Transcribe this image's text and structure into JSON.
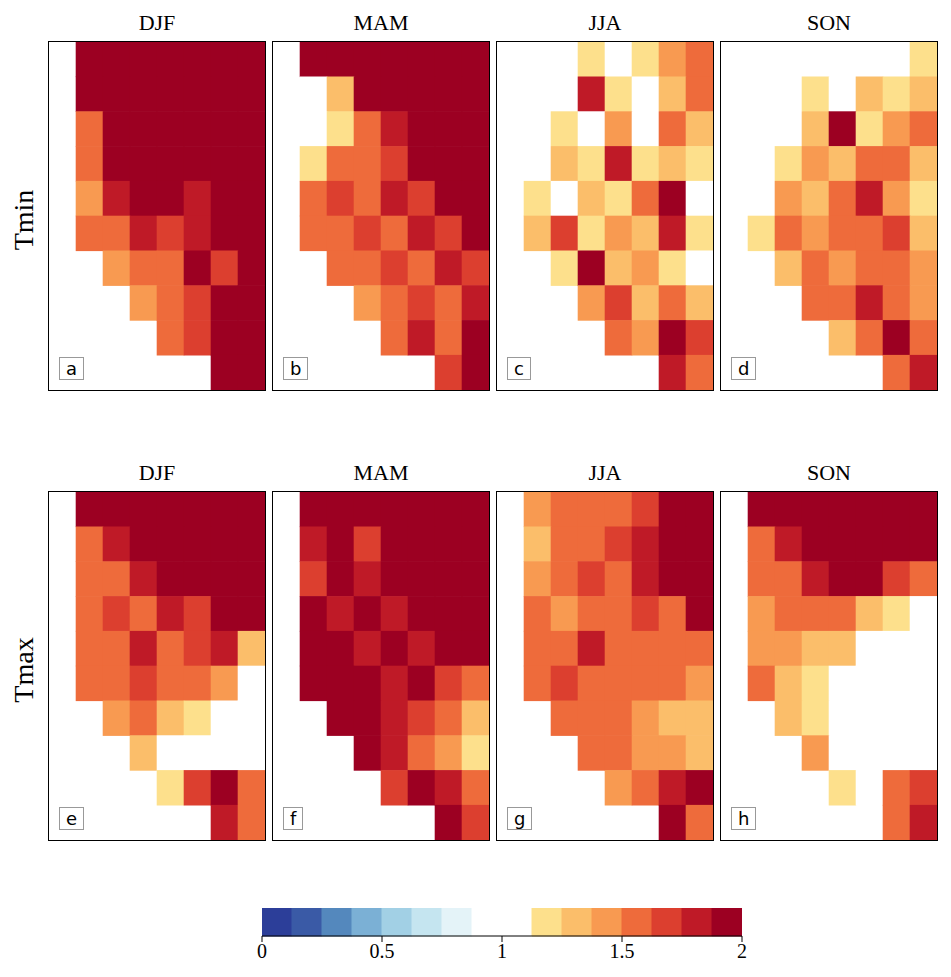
{
  "chart_data": {
    "type": "heatmap",
    "row_labels": [
      "Tmin",
      "Tmax"
    ],
    "tick_labels": false,
    "panels": [
      {
        "title": "DJF",
        "letter": "a",
        "cells": [
          [
            null,
            2,
            2,
            2,
            2,
            2,
            2,
            2
          ],
          [
            null,
            1.9,
            2,
            2,
            2,
            2,
            2,
            2
          ],
          [
            null,
            1.6,
            2,
            2,
            2,
            2,
            2,
            2
          ],
          [
            null,
            1.5,
            1.9,
            2,
            2,
            2,
            2,
            2
          ],
          [
            null,
            1.4,
            1.8,
            1.9,
            2,
            1.8,
            2,
            2
          ],
          [
            null,
            1.5,
            1.6,
            1.8,
            1.7,
            1.8,
            1.9,
            2
          ],
          [
            null,
            null,
            1.4,
            1.6,
            1.5,
            1.9,
            1.7,
            2
          ],
          [
            null,
            null,
            null,
            1.4,
            1.6,
            1.7,
            1.9,
            2
          ],
          [
            null,
            null,
            null,
            null,
            1.5,
            1.7,
            2,
            2
          ],
          [
            null,
            null,
            null,
            null,
            null,
            null,
            2,
            2
          ]
        ]
      },
      {
        "title": "MAM",
        "letter": "b",
        "cells": [
          [
            null,
            1.9,
            2,
            2,
            2,
            2,
            2,
            2
          ],
          [
            null,
            1.0,
            1.3,
            1.9,
            2,
            2,
            2,
            2
          ],
          [
            null,
            1.0,
            1.2,
            1.5,
            1.8,
            2,
            2,
            2
          ],
          [
            null,
            1.2,
            1.5,
            1.6,
            1.7,
            1.9,
            2,
            2
          ],
          [
            null,
            1.5,
            1.7,
            1.6,
            1.8,
            1.7,
            1.9,
            2
          ],
          [
            null,
            1.6,
            1.5,
            1.7,
            1.6,
            1.8,
            1.7,
            1.9
          ],
          [
            null,
            null,
            1.6,
            1.5,
            1.7,
            1.6,
            1.8,
            1.7
          ],
          [
            null,
            null,
            null,
            1.4,
            1.6,
            1.7,
            1.5,
            1.8
          ],
          [
            null,
            null,
            null,
            null,
            1.5,
            1.8,
            1.6,
            1.9
          ],
          [
            null,
            null,
            null,
            null,
            null,
            null,
            1.7,
            1.9
          ]
        ]
      },
      {
        "title": "JJA",
        "letter": "c",
        "cells": [
          [
            null,
            1.0,
            1.1,
            1.2,
            1.1,
            1.2,
            1.4,
            1.6
          ],
          [
            null,
            1.0,
            1.1,
            1.8,
            1.2,
            1.0,
            1.3,
            1.5
          ],
          [
            null,
            1.0,
            1.2,
            1.1,
            1.4,
            1.1,
            1.6,
            1.3
          ],
          [
            null,
            1.1,
            1.3,
            1.2,
            1.8,
            1.2,
            1.3,
            1.2
          ],
          [
            null,
            1.2,
            1.1,
            1.3,
            1.2,
            1.5,
            1.9,
            1.1
          ],
          [
            null,
            1.3,
            1.7,
            1.2,
            1.4,
            1.3,
            1.8,
            1.2
          ],
          [
            null,
            null,
            1.2,
            1.9,
            1.3,
            1.4,
            1.2,
            1.0
          ],
          [
            null,
            null,
            null,
            1.4,
            1.7,
            1.3,
            1.5,
            1.3
          ],
          [
            null,
            null,
            null,
            null,
            1.6,
            1.4,
            1.9,
            1.7
          ],
          [
            null,
            null,
            null,
            null,
            null,
            null,
            1.8,
            1.5
          ]
        ]
      },
      {
        "title": "SON",
        "letter": "d",
        "cells": [
          [
            null,
            0.9,
            1.0,
            1.0,
            1.1,
            1.0,
            1.1,
            1.2
          ],
          [
            null,
            0.9,
            1.0,
            1.2,
            1.1,
            1.3,
            1.2,
            1.3
          ],
          [
            null,
            1.0,
            1.1,
            1.3,
            1.9,
            1.2,
            1.4,
            1.5
          ],
          [
            null,
            1.0,
            1.2,
            1.4,
            1.3,
            1.5,
            1.6,
            1.3
          ],
          [
            null,
            1.1,
            1.4,
            1.3,
            1.5,
            1.8,
            1.4,
            1.2
          ],
          [
            null,
            1.2,
            1.6,
            1.4,
            1.6,
            1.5,
            1.7,
            1.3
          ],
          [
            null,
            null,
            1.3,
            1.5,
            1.4,
            1.6,
            1.5,
            1.4
          ],
          [
            null,
            null,
            null,
            1.5,
            1.6,
            1.8,
            1.5,
            1.4
          ],
          [
            null,
            null,
            null,
            null,
            1.3,
            1.5,
            1.9,
            1.6
          ],
          [
            null,
            null,
            null,
            null,
            null,
            null,
            1.5,
            1.8
          ]
        ]
      },
      {
        "title": "DJF",
        "letter": "e",
        "cells": [
          [
            null,
            2,
            2,
            2,
            2,
            2,
            2,
            2
          ],
          [
            null,
            1.6,
            1.8,
            1.9,
            2,
            2,
            2,
            2
          ],
          [
            null,
            1.5,
            1.6,
            1.8,
            1.9,
            2,
            2,
            2
          ],
          [
            null,
            1.6,
            1.7,
            1.6,
            1.8,
            1.7,
            2,
            1.9
          ],
          [
            null,
            1.5,
            1.6,
            1.8,
            1.6,
            1.7,
            1.8,
            1.3
          ],
          [
            null,
            1.5,
            1.6,
            1.7,
            1.5,
            1.6,
            1.4,
            1.1
          ],
          [
            null,
            null,
            1.4,
            1.5,
            1.3,
            1.2,
            1.0,
            1.0
          ],
          [
            null,
            null,
            null,
            1.3,
            1.1,
            1.0,
            0.95,
            1.0
          ],
          [
            null,
            null,
            null,
            null,
            1.2,
            1.7,
            1.9,
            1.6
          ],
          [
            null,
            null,
            null,
            null,
            null,
            null,
            1.8,
            1.5
          ]
        ]
      },
      {
        "title": "MAM",
        "letter": "f",
        "cells": [
          [
            null,
            2,
            2,
            2,
            2,
            2,
            2,
            2
          ],
          [
            null,
            1.8,
            1.9,
            1.7,
            2,
            2,
            2,
            2
          ],
          [
            null,
            1.7,
            1.9,
            1.8,
            1.9,
            2,
            2,
            2
          ],
          [
            null,
            1.9,
            1.8,
            1.9,
            1.8,
            2,
            2,
            2
          ],
          [
            null,
            2,
            1.9,
            1.8,
            1.9,
            1.8,
            2,
            1.9
          ],
          [
            null,
            2,
            1.9,
            2,
            1.8,
            1.9,
            1.7,
            1.5
          ],
          [
            null,
            null,
            2,
            1.9,
            1.8,
            1.7,
            1.5,
            1.3
          ],
          [
            null,
            null,
            null,
            1.9,
            1.8,
            1.6,
            1.4,
            1.2
          ],
          [
            null,
            null,
            null,
            null,
            1.7,
            1.9,
            1.8,
            1.6
          ],
          [
            null,
            null,
            null,
            null,
            null,
            null,
            1.9,
            1.7
          ]
        ]
      },
      {
        "title": "JJA",
        "letter": "g",
        "cells": [
          [
            null,
            1.4,
            1.5,
            1.5,
            1.6,
            1.7,
            1.9,
            2
          ],
          [
            null,
            1.3,
            1.5,
            1.6,
            1.7,
            1.8,
            2,
            2
          ],
          [
            null,
            1.4,
            1.5,
            1.7,
            1.6,
            1.8,
            1.9,
            2
          ],
          [
            null,
            1.5,
            1.4,
            1.6,
            1.5,
            1.7,
            1.6,
            1.9
          ],
          [
            null,
            1.6,
            1.5,
            1.8,
            1.6,
            1.5,
            1.6,
            1.5
          ],
          [
            null,
            1.5,
            1.7,
            1.6,
            1.5,
            1.6,
            1.5,
            1.4
          ],
          [
            null,
            null,
            1.6,
            1.5,
            1.6,
            1.4,
            1.3,
            1.3
          ],
          [
            null,
            null,
            null,
            1.6,
            1.5,
            1.4,
            1.4,
            1.3
          ],
          [
            null,
            null,
            null,
            null,
            1.4,
            1.5,
            1.8,
            1.9
          ],
          [
            null,
            null,
            null,
            null,
            null,
            null,
            1.9,
            1.6
          ]
        ]
      },
      {
        "title": "SON",
        "letter": "h",
        "cells": [
          [
            null,
            1.9,
            2,
            2,
            2,
            2,
            2,
            2
          ],
          [
            null,
            1.6,
            1.8,
            2,
            2,
            2,
            2,
            2
          ],
          [
            null,
            1.5,
            1.6,
            1.8,
            1.9,
            1.9,
            1.7,
            1.6
          ],
          [
            null,
            1.4,
            1.5,
            1.6,
            1.5,
            1.3,
            1.2,
            1.1
          ],
          [
            null,
            1.4,
            1.4,
            1.3,
            1.3,
            1.1,
            1.0,
            1.0
          ],
          [
            null,
            1.5,
            1.3,
            1.2,
            1.1,
            1.0,
            1.0,
            1.1
          ],
          [
            null,
            null,
            1.3,
            1.2,
            1.1,
            1.0,
            1.0,
            1.0
          ],
          [
            null,
            null,
            null,
            1.4,
            1.1,
            1.0,
            1.0,
            1.0
          ],
          [
            null,
            null,
            null,
            null,
            1.2,
            1.1,
            1.5,
            1.7
          ],
          [
            null,
            null,
            null,
            null,
            null,
            null,
            1.6,
            1.8
          ]
        ]
      }
    ],
    "colorbar": {
      "range": [
        0,
        2
      ],
      "ticks": [
        0,
        0.5,
        1,
        1.5,
        2
      ],
      "colors": [
        "#2c3e99",
        "#3a5aa6",
        "#5488bd",
        "#7bb0d5",
        "#a2d0e5",
        "#c5e5f0",
        "#e4f3f8",
        "#ffffff",
        "#ffffff",
        "#fde08c",
        "#fbbe6a",
        "#f89a51",
        "#ee6b3b",
        "#dc3f2f",
        "#bf1a27",
        "#9c0022"
      ]
    }
  }
}
